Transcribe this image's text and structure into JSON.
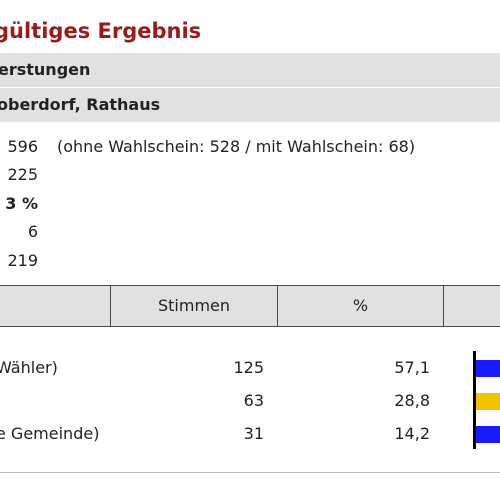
{
  "heading": "gültiges Ergebnis",
  "location": {
    "line1": "erstungen",
    "line2": "oberdorf, Rathaus"
  },
  "stats": [
    {
      "value": "596",
      "detail": "(ohne Wahlschein: 528 / mit Wahlschein: 68)",
      "bold": false
    },
    {
      "value": "225",
      "detail": "",
      "bold": false
    },
    {
      "value": "3 %",
      "detail": "",
      "bold": true
    },
    {
      "value": "6",
      "detail": "",
      "bold": false
    },
    {
      "value": "219",
      "detail": "",
      "bold": false
    }
  ],
  "table": {
    "col_votes": "Stimmen",
    "col_pct": "%",
    "rows": [
      {
        "name": "Wähler)",
        "votes": "125",
        "pct": "57,1",
        "bar_color": "#1a1aff"
      },
      {
        "name": "",
        "votes": "63",
        "pct": "28,8",
        "bar_color": "#f2c200"
      },
      {
        "name": "e Gemeinde)",
        "votes": "31",
        "pct": "14,2",
        "bar_color": "#1a1aff"
      }
    ]
  }
}
